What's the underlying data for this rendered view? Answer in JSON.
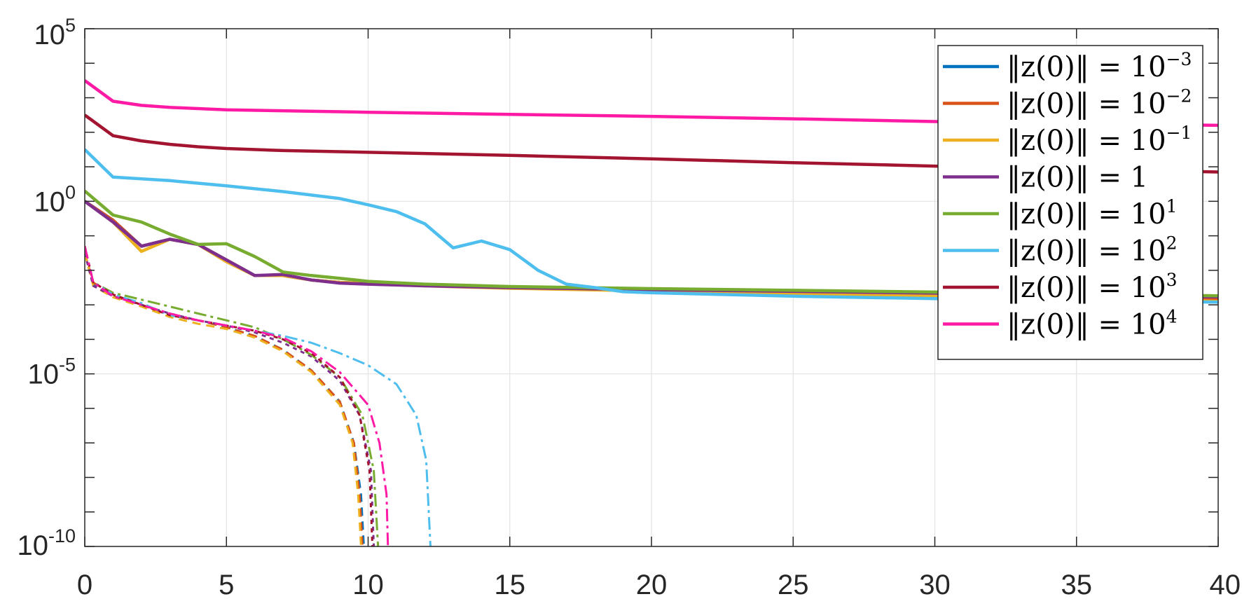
{
  "chart_data": {
    "type": "line",
    "title": "",
    "xlabel": "",
    "ylabel": "",
    "xlim": [
      0,
      40
    ],
    "ylim_log10": [
      -10,
      5
    ],
    "y_scale": "log",
    "grid": true,
    "legend_position": "top-right",
    "x_ticks": [
      0,
      5,
      10,
      15,
      20,
      25,
      30,
      35,
      40
    ],
    "x_tick_labels": [
      "0",
      "5",
      "10",
      "15",
      "20",
      "25",
      "30",
      "35",
      "40"
    ],
    "y_ticks_log10": [
      5,
      0,
      -5,
      -10
    ],
    "y_tick_labels": [
      {
        "base": "10",
        "exp": "5"
      },
      {
        "base": "10",
        "exp": "0"
      },
      {
        "base": "10",
        "exp": "-5"
      },
      {
        "base": "10",
        "exp": "-10"
      }
    ],
    "series": [
      {
        "legend": {
          "lhs": "‖z(0)‖ = 10",
          "exp": "−3"
        },
        "color": "#0072BD",
        "solid": [
          [
            0,
            0.0
          ],
          [
            1,
            -0.55
          ],
          [
            2,
            -1.3
          ],
          [
            3,
            -1.1
          ],
          [
            4,
            -1.25
          ],
          [
            5,
            -1.7
          ],
          [
            6,
            -2.15
          ],
          [
            7,
            -2.15
          ],
          [
            8,
            -2.28
          ],
          [
            9,
            -2.35
          ],
          [
            10,
            -2.38
          ],
          [
            12,
            -2.44
          ],
          [
            15,
            -2.49
          ],
          [
            20,
            -2.56
          ],
          [
            25,
            -2.62
          ],
          [
            30,
            -2.68
          ],
          [
            35,
            -2.73
          ],
          [
            40,
            -2.8
          ]
        ],
        "dashed": [
          [
            0,
            -1.5
          ],
          [
            0.3,
            -2.4
          ],
          [
            1,
            -2.75
          ],
          [
            2,
            -3.0
          ],
          [
            3,
            -3.3
          ],
          [
            4,
            -3.45
          ],
          [
            5,
            -3.65
          ],
          [
            6,
            -3.9
          ],
          [
            7,
            -4.3
          ],
          [
            8,
            -4.9
          ],
          [
            9,
            -5.8
          ],
          [
            9.5,
            -7.0
          ],
          [
            9.75,
            -8.5
          ],
          [
            9.85,
            -10
          ]
        ],
        "dash": "12,8"
      },
      {
        "legend": {
          "lhs": "‖z(0)‖ = 10",
          "exp": "−2"
        },
        "color": "#D95319",
        "solid": [
          [
            0,
            0.0
          ],
          [
            1,
            -0.55
          ],
          [
            2,
            -1.3
          ],
          [
            3,
            -1.1
          ],
          [
            4,
            -1.25
          ],
          [
            5,
            -1.7
          ],
          [
            6,
            -2.15
          ],
          [
            7,
            -2.15
          ],
          [
            8,
            -2.28
          ],
          [
            9,
            -2.35
          ],
          [
            10,
            -2.38
          ],
          [
            12,
            -2.44
          ],
          [
            15,
            -2.5
          ],
          [
            20,
            -2.57
          ],
          [
            25,
            -2.63
          ],
          [
            30,
            -2.69
          ],
          [
            35,
            -2.74
          ],
          [
            40,
            -2.82
          ]
        ],
        "dashed": [
          [
            0,
            -1.5
          ],
          [
            0.3,
            -2.35
          ],
          [
            1,
            -2.75
          ],
          [
            2,
            -3.0
          ],
          [
            3,
            -3.3
          ],
          [
            4,
            -3.45
          ],
          [
            5,
            -3.65
          ],
          [
            6,
            -3.9
          ],
          [
            7,
            -4.3
          ],
          [
            8,
            -4.9
          ],
          [
            9,
            -5.8
          ],
          [
            9.5,
            -7.0
          ],
          [
            9.7,
            -8.5
          ],
          [
            9.8,
            -10
          ]
        ],
        "dash": "12,8"
      },
      {
        "legend": {
          "lhs": "‖z(0)‖ = 10",
          "exp": "−1"
        },
        "color": "#EDB120",
        "solid": [
          [
            0,
            0.0
          ],
          [
            1,
            -0.6
          ],
          [
            2,
            -1.45
          ],
          [
            3,
            -1.1
          ],
          [
            4,
            -1.25
          ],
          [
            5,
            -1.75
          ],
          [
            6,
            -2.15
          ],
          [
            7,
            -2.15
          ],
          [
            8,
            -2.28
          ],
          [
            9,
            -2.35
          ],
          [
            10,
            -2.38
          ],
          [
            12,
            -2.45
          ],
          [
            15,
            -2.52
          ],
          [
            20,
            -2.6
          ],
          [
            25,
            -2.68
          ],
          [
            30,
            -2.74
          ],
          [
            35,
            -2.8
          ],
          [
            40,
            -2.9
          ]
        ],
        "dashed": [
          [
            0,
            -1.5
          ],
          [
            0.3,
            -2.45
          ],
          [
            1,
            -2.78
          ],
          [
            2,
            -3.05
          ],
          [
            3,
            -3.35
          ],
          [
            4,
            -3.55
          ],
          [
            5,
            -3.7
          ],
          [
            6,
            -3.95
          ],
          [
            7,
            -4.35
          ],
          [
            8,
            -4.95
          ],
          [
            9,
            -5.9
          ],
          [
            9.45,
            -7.0
          ],
          [
            9.65,
            -8.5
          ],
          [
            9.75,
            -10
          ]
        ],
        "dash": "12,8"
      },
      {
        "legend": {
          "lhs": "‖z(0)‖ = 1",
          "exp": ""
        },
        "color": "#7E2F8E",
        "solid": [
          [
            0,
            0.0
          ],
          [
            1,
            -0.6
          ],
          [
            2,
            -1.3
          ],
          [
            3,
            -1.1
          ],
          [
            4,
            -1.25
          ],
          [
            5,
            -1.7
          ],
          [
            6,
            -2.15
          ],
          [
            7,
            -2.12
          ],
          [
            8,
            -2.28
          ],
          [
            9,
            -2.37
          ],
          [
            10,
            -2.4
          ],
          [
            12,
            -2.45
          ],
          [
            15,
            -2.5
          ],
          [
            20,
            -2.56
          ],
          [
            25,
            -2.61
          ],
          [
            30,
            -2.66
          ],
          [
            35,
            -2.71
          ],
          [
            40,
            -2.77
          ]
        ],
        "dashed": [
          [
            0,
            -1.5
          ],
          [
            0.3,
            -2.45
          ],
          [
            1,
            -2.75
          ],
          [
            2,
            -3.0
          ],
          [
            3,
            -3.25
          ],
          [
            4,
            -3.45
          ],
          [
            5,
            -3.6
          ],
          [
            6,
            -3.8
          ],
          [
            7,
            -4.1
          ],
          [
            8,
            -4.5
          ],
          [
            9,
            -5.2
          ],
          [
            9.7,
            -6.2
          ],
          [
            10.1,
            -7.8
          ],
          [
            10.2,
            -10
          ]
        ],
        "dash": "6,6"
      },
      {
        "legend": {
          "lhs": "‖z(0)‖ = 10",
          "exp": "1"
        },
        "color": "#77AC30",
        "solid": [
          [
            0,
            0.3
          ],
          [
            1,
            -0.4
          ],
          [
            2,
            -0.6
          ],
          [
            3,
            -0.95
          ],
          [
            4,
            -1.25
          ],
          [
            5,
            -1.23
          ],
          [
            6,
            -1.6
          ],
          [
            7,
            -2.05
          ],
          [
            8,
            -2.15
          ],
          [
            9,
            -2.23
          ],
          [
            10,
            -2.32
          ],
          [
            12,
            -2.4
          ],
          [
            15,
            -2.47
          ],
          [
            20,
            -2.53
          ],
          [
            25,
            -2.58
          ],
          [
            30,
            -2.63
          ],
          [
            35,
            -2.68
          ],
          [
            40,
            -2.74
          ]
        ],
        "dashed": [
          [
            0,
            -1.3
          ],
          [
            0.3,
            -2.35
          ],
          [
            1,
            -2.65
          ],
          [
            2,
            -2.85
          ],
          [
            3,
            -3.05
          ],
          [
            4,
            -3.25
          ],
          [
            5,
            -3.45
          ],
          [
            6,
            -3.65
          ],
          [
            7,
            -4.0
          ],
          [
            8,
            -4.45
          ],
          [
            9,
            -5.1
          ],
          [
            9.8,
            -6.2
          ],
          [
            10.2,
            -7.8
          ],
          [
            10.35,
            -10
          ]
        ],
        "dash": "18,6,4,6"
      },
      {
        "legend": {
          "lhs": "‖z(0)‖ = 10",
          "exp": "2"
        },
        "color": "#4DBEEE",
        "solid": [
          [
            0,
            1.5
          ],
          [
            1,
            0.7
          ],
          [
            3,
            0.6
          ],
          [
            5,
            0.45
          ],
          [
            7,
            0.28
          ],
          [
            9,
            0.08
          ],
          [
            10,
            -0.1
          ],
          [
            11,
            -0.3
          ],
          [
            12,
            -0.65
          ],
          [
            13,
            -1.35
          ],
          [
            14,
            -1.15
          ],
          [
            15,
            -1.4
          ],
          [
            16,
            -2.0
          ],
          [
            17,
            -2.4
          ],
          [
            18,
            -2.5
          ],
          [
            19,
            -2.62
          ],
          [
            20,
            -2.65
          ],
          [
            25,
            -2.75
          ],
          [
            30,
            -2.82
          ],
          [
            35,
            -2.88
          ],
          [
            40,
            -2.92
          ]
        ],
        "dashed": [
          [
            0,
            -1.3
          ],
          [
            0.3,
            -2.35
          ],
          [
            1,
            -2.7
          ],
          [
            2,
            -2.95
          ],
          [
            3,
            -3.3
          ],
          [
            4,
            -3.45
          ],
          [
            5,
            -3.6
          ],
          [
            6,
            -3.75
          ],
          [
            7,
            -3.9
          ],
          [
            8,
            -4.1
          ],
          [
            9,
            -4.4
          ],
          [
            10,
            -4.75
          ],
          [
            11,
            -5.3
          ],
          [
            11.7,
            -6.2
          ],
          [
            12.05,
            -7.5
          ],
          [
            12.2,
            -10
          ]
        ],
        "dash": "18,6,4,6"
      },
      {
        "legend": {
          "lhs": "‖z(0)‖ = 10",
          "exp": "3"
        },
        "color": "#A2142F",
        "solid": [
          [
            0,
            2.5
          ],
          [
            1,
            1.9
          ],
          [
            2,
            1.75
          ],
          [
            3,
            1.65
          ],
          [
            4,
            1.58
          ],
          [
            5,
            1.53
          ],
          [
            7,
            1.47
          ],
          [
            10,
            1.42
          ],
          [
            15,
            1.33
          ],
          [
            20,
            1.23
          ],
          [
            25,
            1.12
          ],
          [
            30,
            1.02
          ],
          [
            35,
            0.93
          ],
          [
            40,
            0.85
          ]
        ],
        "dashed": [
          [
            0,
            -1.3
          ],
          [
            0.3,
            -2.35
          ],
          [
            1,
            -2.7
          ],
          [
            2,
            -3.0
          ],
          [
            3,
            -3.3
          ],
          [
            4,
            -3.45
          ],
          [
            5,
            -3.6
          ],
          [
            6,
            -3.75
          ],
          [
            7,
            -4.0
          ],
          [
            8,
            -4.4
          ],
          [
            9,
            -5.1
          ],
          [
            9.7,
            -6.2
          ],
          [
            10.05,
            -7.8
          ],
          [
            10.15,
            -10
          ]
        ],
        "dash": "6,6"
      },
      {
        "legend": {
          "lhs": "‖z(0)‖ = 10",
          "exp": "4"
        },
        "color": "#FF1AA6",
        "solid": [
          [
            0,
            3.5
          ],
          [
            1,
            2.9
          ],
          [
            2,
            2.78
          ],
          [
            3,
            2.72
          ],
          [
            5,
            2.65
          ],
          [
            10,
            2.58
          ],
          [
            15,
            2.52
          ],
          [
            20,
            2.46
          ],
          [
            25,
            2.39
          ],
          [
            30,
            2.31
          ],
          [
            35,
            2.25
          ],
          [
            40,
            2.2
          ]
        ],
        "dashed": [
          [
            0,
            -1.3
          ],
          [
            0.3,
            -2.35
          ],
          [
            1,
            -2.75
          ],
          [
            2,
            -3.0
          ],
          [
            3,
            -3.25
          ],
          [
            4,
            -3.45
          ],
          [
            5,
            -3.6
          ],
          [
            6,
            -3.75
          ],
          [
            7,
            -3.95
          ],
          [
            8,
            -4.35
          ],
          [
            9,
            -4.95
          ],
          [
            10,
            -5.9
          ],
          [
            10.4,
            -7.0
          ],
          [
            10.65,
            -8.5
          ],
          [
            10.7,
            -10
          ]
        ],
        "dash": "18,6,4,6"
      }
    ]
  }
}
